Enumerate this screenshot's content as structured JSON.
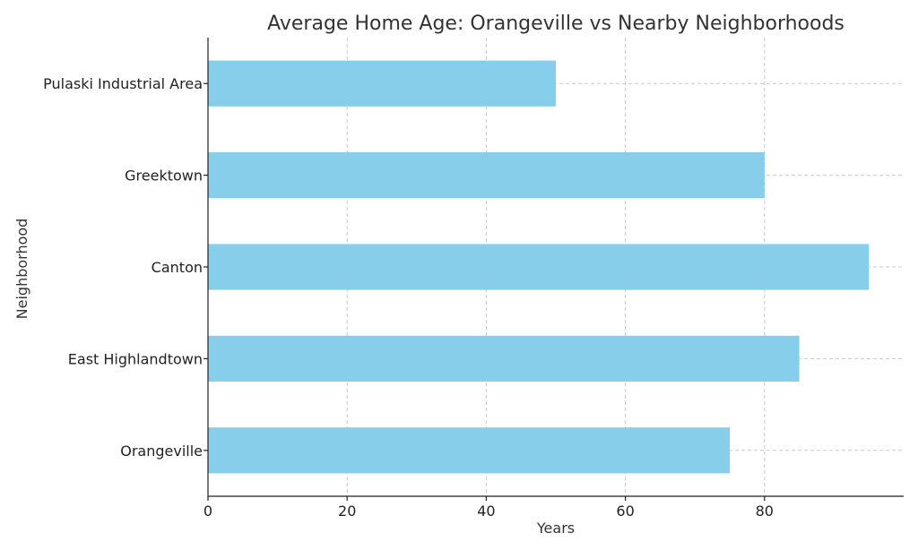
{
  "chart_data": {
    "type": "bar",
    "orientation": "horizontal",
    "title": "Average Home Age: Orangeville vs Nearby Neighborhoods",
    "xlabel": "Years",
    "ylabel": "Neighborhood",
    "categories": [
      "Orangeville",
      "East Highlandtown",
      "Canton",
      "Greektown",
      "Pulaski Industrial Area"
    ],
    "values": [
      75,
      85,
      95,
      80,
      50
    ],
    "xlim": [
      0,
      100
    ],
    "xticks": [
      0,
      20,
      40,
      60,
      80
    ],
    "grid": true,
    "bar_color": "#87ceeb"
  }
}
